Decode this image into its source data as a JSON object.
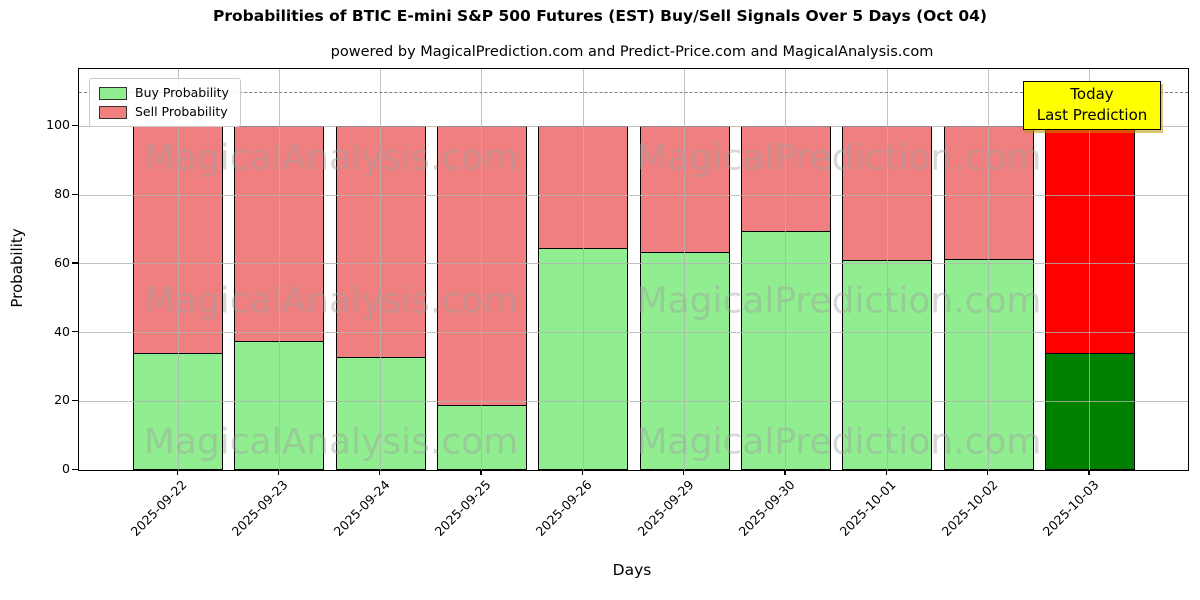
{
  "chart_data": {
    "type": "bar",
    "stacked": true,
    "title": "Probabilities of BTIC E-mini S&P 500 Futures (EST) Buy/Sell Signals Over 5 Days (Oct 04)",
    "subtitle": "powered by MagicalPrediction.com and Predict-Price.com and MagicalAnalysis.com",
    "xlabel": "Days",
    "ylabel": "Probability",
    "categories": [
      "2025-09-22",
      "2025-09-23",
      "2025-09-24",
      "2025-09-25",
      "2025-09-26",
      "2025-09-29",
      "2025-09-30",
      "2025-10-01",
      "2025-10-02",
      "2025-10-03"
    ],
    "series": [
      {
        "name": "Buy Probability",
        "color": "#90EE90",
        "values": [
          34,
          37.5,
          33,
          19,
          64.5,
          63.5,
          69.5,
          61,
          61.5,
          34
        ]
      },
      {
        "name": "Sell Probability",
        "color": "#F08080",
        "values": [
          66,
          62.5,
          67,
          81,
          35.5,
          36.5,
          30.5,
          39,
          38.5,
          66
        ]
      }
    ],
    "bar_total": 100,
    "highlight_last_bar": {
      "index": 9,
      "buy_color": "#008000",
      "sell_color": "#FF0000"
    },
    "yticks": [
      0,
      20,
      40,
      60,
      80,
      100
    ],
    "ylim": [
      0,
      116.7
    ],
    "grid": true,
    "legend_position": "upper left",
    "reference_line": {
      "y": 110,
      "style": "dashed",
      "color": "#7f7f7f"
    },
    "annotation": {
      "line1": "Today",
      "line2": "Last Prediction",
      "bg_color": "#FFFF00"
    },
    "watermarks": {
      "left_text": "MagicalAnalysis.com",
      "right_text": "MagicalPrediction.com",
      "rows": 3
    }
  }
}
